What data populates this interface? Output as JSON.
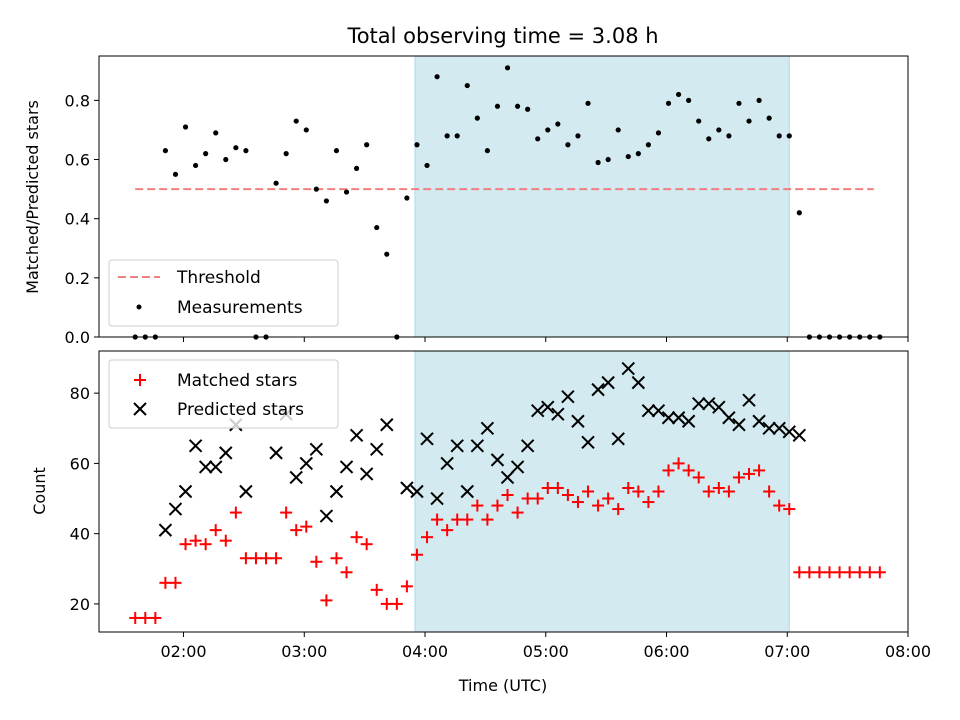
{
  "chart_data": [
    {
      "type": "scatter",
      "title": "Total observing time = 3.08 h",
      "xlabel": "",
      "ylabel": "Matched/Predicted stars",
      "xlim": [
        "01:18",
        "08:00"
      ],
      "ylim": [
        0,
        0.95
      ],
      "yticks": [
        0.0,
        0.2,
        0.4,
        0.6,
        0.8
      ],
      "ytick_labels": [
        "0.0",
        "0.2",
        "0.4",
        "0.6",
        "0.8"
      ],
      "grid": false,
      "legend_position": "lower-left",
      "highlight_band": {
        "from": "03:55",
        "to": "07:01",
        "color": "#d3eaf1"
      },
      "threshold": {
        "name": "Threshold",
        "value": 0.5,
        "x_range": [
          "01:36",
          "07:43"
        ],
        "color": "#f08080"
      },
      "series": [
        {
          "name": "Measurements",
          "marker": "dot",
          "color": "#000000",
          "points": [
            [
              "01:36",
              0.0
            ],
            [
              "01:41",
              0.0
            ],
            [
              "01:46",
              0.0
            ],
            [
              "01:51",
              0.63
            ],
            [
              "01:56",
              0.55
            ],
            [
              "02:01",
              0.71
            ],
            [
              "02:06",
              0.58
            ],
            [
              "02:11",
              0.62
            ],
            [
              "02:16",
              0.69
            ],
            [
              "02:21",
              0.6
            ],
            [
              "02:26",
              0.64
            ],
            [
              "02:31",
              0.63
            ],
            [
              "02:36",
              0.0
            ],
            [
              "02:41",
              0.0
            ],
            [
              "02:46",
              0.52
            ],
            [
              "02:51",
              0.62
            ],
            [
              "02:56",
              0.73
            ],
            [
              "03:01",
              0.7
            ],
            [
              "03:06",
              0.5
            ],
            [
              "03:11",
              0.46
            ],
            [
              "03:16",
              0.63
            ],
            [
              "03:21",
              0.49
            ],
            [
              "03:26",
              0.57
            ],
            [
              "03:31",
              0.65
            ],
            [
              "03:36",
              0.37
            ],
            [
              "03:41",
              0.28
            ],
            [
              "03:46",
              0.0
            ],
            [
              "03:51",
              0.47
            ],
            [
              "03:56",
              0.65
            ],
            [
              "04:01",
              0.58
            ],
            [
              "04:06",
              0.88
            ],
            [
              "04:11",
              0.68
            ],
            [
              "04:16",
              0.68
            ],
            [
              "04:21",
              0.85
            ],
            [
              "04:26",
              0.74
            ],
            [
              "04:31",
              0.63
            ],
            [
              "04:36",
              0.78
            ],
            [
              "04:41",
              0.91
            ],
            [
              "04:46",
              0.78
            ],
            [
              "04:51",
              0.77
            ],
            [
              "04:56",
              0.67
            ],
            [
              "05:01",
              0.7
            ],
            [
              "05:06",
              0.72
            ],
            [
              "05:11",
              0.65
            ],
            [
              "05:16",
              0.68
            ],
            [
              "05:21",
              0.79
            ],
            [
              "05:26",
              0.59
            ],
            [
              "05:31",
              0.6
            ],
            [
              "05:36",
              0.7
            ],
            [
              "05:41",
              0.61
            ],
            [
              "05:46",
              0.62
            ],
            [
              "05:51",
              0.65
            ],
            [
              "05:56",
              0.69
            ],
            [
              "06:01",
              0.79
            ],
            [
              "06:06",
              0.82
            ],
            [
              "06:11",
              0.8
            ],
            [
              "06:16",
              0.73
            ],
            [
              "06:21",
              0.67
            ],
            [
              "06:26",
              0.7
            ],
            [
              "06:31",
              0.68
            ],
            [
              "06:36",
              0.79
            ],
            [
              "06:41",
              0.73
            ],
            [
              "06:46",
              0.8
            ],
            [
              "06:51",
              0.74
            ],
            [
              "06:56",
              0.68
            ],
            [
              "07:01",
              0.68
            ],
            [
              "07:06",
              0.42
            ],
            [
              "07:11",
              0.0
            ],
            [
              "07:16",
              0.0
            ],
            [
              "07:21",
              0.0
            ],
            [
              "07:26",
              0.0
            ],
            [
              "07:31",
              0.0
            ],
            [
              "07:36",
              0.0
            ],
            [
              "07:41",
              0.0
            ],
            [
              "07:46",
              0.0
            ]
          ]
        }
      ]
    },
    {
      "type": "scatter",
      "title": "",
      "xlabel": "Time (UTC)",
      "ylabel": "Count",
      "xlim": [
        "01:18",
        "08:00"
      ],
      "xtick_labels": [
        "02:00",
        "03:00",
        "04:00",
        "05:00",
        "06:00",
        "07:00",
        "08:00"
      ],
      "ylim": [
        12,
        92
      ],
      "yticks": [
        20,
        40,
        60,
        80
      ],
      "ytick_labels": [
        "20",
        "40",
        "60",
        "80"
      ],
      "grid": false,
      "legend_position": "upper-left",
      "highlight_band": {
        "from": "03:55",
        "to": "07:01",
        "color": "#d3eaf1"
      },
      "series": [
        {
          "name": "Matched stars",
          "marker": "plus",
          "color": "#ff0000",
          "points": [
            [
              "01:36",
              16
            ],
            [
              "01:41",
              16
            ],
            [
              "01:46",
              16
            ],
            [
              "01:51",
              26
            ],
            [
              "01:56",
              26
            ],
            [
              "02:01",
              37
            ],
            [
              "02:06",
              38
            ],
            [
              "02:11",
              37
            ],
            [
              "02:16",
              41
            ],
            [
              "02:21",
              38
            ],
            [
              "02:26",
              46
            ],
            [
              "02:31",
              33
            ],
            [
              "02:36",
              33
            ],
            [
              "02:41",
              33
            ],
            [
              "02:46",
              33
            ],
            [
              "02:51",
              46
            ],
            [
              "02:56",
              41
            ],
            [
              "03:01",
              42
            ],
            [
              "03:06",
              32
            ],
            [
              "03:11",
              21
            ],
            [
              "03:16",
              33
            ],
            [
              "03:21",
              29
            ],
            [
              "03:26",
              39
            ],
            [
              "03:31",
              37
            ],
            [
              "03:36",
              24
            ],
            [
              "03:41",
              20
            ],
            [
              "03:46",
              20
            ],
            [
              "03:51",
              25
            ],
            [
              "03:56",
              34
            ],
            [
              "04:01",
              39
            ],
            [
              "04:06",
              44
            ],
            [
              "04:11",
              41
            ],
            [
              "04:16",
              44
            ],
            [
              "04:21",
              44
            ],
            [
              "04:26",
              48
            ],
            [
              "04:31",
              44
            ],
            [
              "04:36",
              48
            ],
            [
              "04:41",
              51
            ],
            [
              "04:46",
              46
            ],
            [
              "04:51",
              50
            ],
            [
              "04:56",
              50
            ],
            [
              "05:01",
              53
            ],
            [
              "05:06",
              53
            ],
            [
              "05:11",
              51
            ],
            [
              "05:16",
              49
            ],
            [
              "05:21",
              52
            ],
            [
              "05:26",
              48
            ],
            [
              "05:31",
              50
            ],
            [
              "05:36",
              47
            ],
            [
              "05:41",
              53
            ],
            [
              "05:46",
              52
            ],
            [
              "05:51",
              49
            ],
            [
              "05:56",
              52
            ],
            [
              "06:01",
              58
            ],
            [
              "06:06",
              60
            ],
            [
              "06:11",
              58
            ],
            [
              "06:16",
              56
            ],
            [
              "06:21",
              52
            ],
            [
              "06:26",
              53
            ],
            [
              "06:31",
              52
            ],
            [
              "06:36",
              56
            ],
            [
              "06:41",
              57
            ],
            [
              "06:46",
              58
            ],
            [
              "06:51",
              52
            ],
            [
              "06:56",
              48
            ],
            [
              "07:01",
              47
            ],
            [
              "07:06",
              29
            ],
            [
              "07:11",
              29
            ],
            [
              "07:16",
              29
            ],
            [
              "07:21",
              29
            ],
            [
              "07:26",
              29
            ],
            [
              "07:31",
              29
            ],
            [
              "07:36",
              29
            ],
            [
              "07:41",
              29
            ],
            [
              "07:46",
              29
            ]
          ]
        },
        {
          "name": "Predicted stars",
          "marker": "x",
          "color": "#000000",
          "points": [
            [
              "01:51",
              41
            ],
            [
              "01:56",
              47
            ],
            [
              "02:01",
              52
            ],
            [
              "02:06",
              65
            ],
            [
              "02:11",
              59
            ],
            [
              "02:16",
              59
            ],
            [
              "02:21",
              63
            ],
            [
              "02:26",
              71
            ],
            [
              "02:31",
              52
            ],
            [
              "02:51",
              74
            ],
            [
              "02:46",
              63
            ],
            [
              "02:56",
              56
            ],
            [
              "03:01",
              60
            ],
            [
              "03:06",
              64
            ],
            [
              "03:11",
              45
            ],
            [
              "03:16",
              52
            ],
            [
              "03:21",
              59
            ],
            [
              "03:26",
              68
            ],
            [
              "03:31",
              57
            ],
            [
              "03:36",
              64
            ],
            [
              "03:41",
              71
            ],
            [
              "03:51",
              53
            ],
            [
              "03:56",
              52
            ],
            [
              "04:01",
              67
            ],
            [
              "04:06",
              50
            ],
            [
              "04:11",
              60
            ],
            [
              "04:16",
              65
            ],
            [
              "04:21",
              52
            ],
            [
              "04:26",
              65
            ],
            [
              "04:31",
              70
            ],
            [
              "04:36",
              61
            ],
            [
              "04:41",
              56
            ],
            [
              "04:46",
              59
            ],
            [
              "04:51",
              65
            ],
            [
              "04:56",
              75
            ],
            [
              "05:01",
              76
            ],
            [
              "05:06",
              74
            ],
            [
              "05:11",
              79
            ],
            [
              "05:16",
              72
            ],
            [
              "05:21",
              66
            ],
            [
              "05:26",
              81
            ],
            [
              "05:31",
              83
            ],
            [
              "05:36",
              67
            ],
            [
              "05:41",
              87
            ],
            [
              "05:46",
              83
            ],
            [
              "05:51",
              75
            ],
            [
              "05:56",
              75
            ],
            [
              "06:01",
              73
            ],
            [
              "06:06",
              73
            ],
            [
              "06:11",
              72
            ],
            [
              "06:16",
              77
            ],
            [
              "06:21",
              77
            ],
            [
              "06:26",
              76
            ],
            [
              "06:31",
              73
            ],
            [
              "06:36",
              71
            ],
            [
              "06:41",
              78
            ],
            [
              "06:46",
              72
            ],
            [
              "06:51",
              70
            ],
            [
              "06:56",
              70
            ],
            [
              "07:01",
              69
            ],
            [
              "07:06",
              68
            ]
          ]
        }
      ]
    }
  ]
}
